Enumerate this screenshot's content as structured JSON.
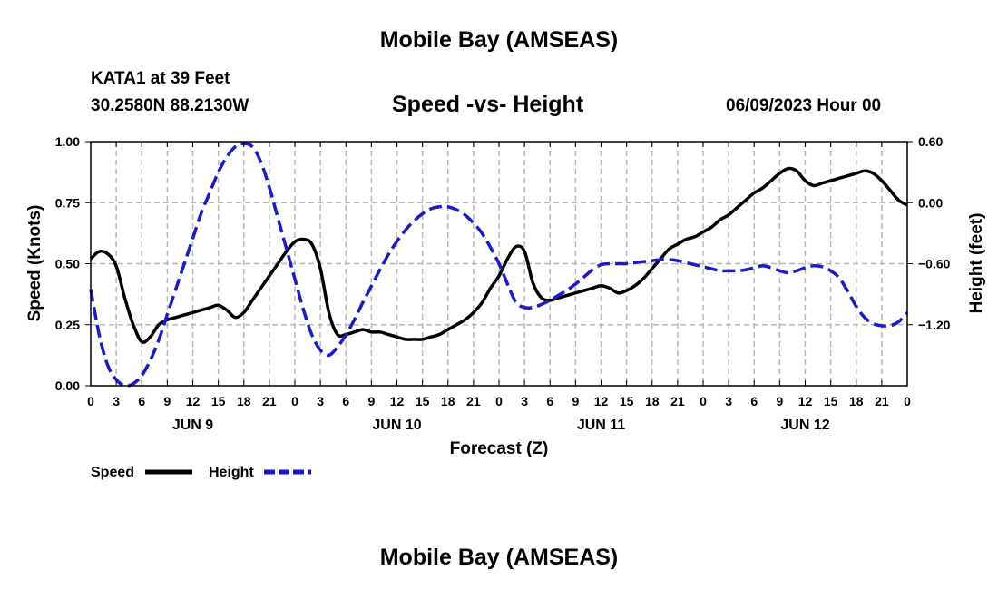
{
  "header": {
    "top_title": "Mobile Bay (AMSEAS)",
    "station": "KATA1 at 39 Feet",
    "coords": "30.2580N  88.2130W",
    "datetime": "06/09/2023 Hour 00",
    "bottom_title": "Mobile Bay (AMSEAS)"
  },
  "chart_data": {
    "type": "line",
    "title": "Speed -vs- Height",
    "xlabel": "Forecast (Z)",
    "ylabel_left": "Speed (Knots)",
    "ylabel_right": "Height (feet)",
    "x_range_hours": [
      0,
      96
    ],
    "x_tick_labels": [
      "0",
      "3",
      "6",
      "9",
      "12",
      "15",
      "18",
      "21",
      "0",
      "3",
      "6",
      "9",
      "12",
      "15",
      "18",
      "21",
      "0",
      "3",
      "6",
      "9",
      "12",
      "15",
      "18",
      "21",
      "0",
      "3",
      "6",
      "9",
      "12",
      "15",
      "18",
      "21",
      "0"
    ],
    "day_labels": [
      {
        "text": "JUN 9",
        "hour": 12
      },
      {
        "text": "JUN 10",
        "hour": 36
      },
      {
        "text": "JUN 11",
        "hour": 60
      },
      {
        "text": "JUN 12",
        "hour": 84
      }
    ],
    "ylim_left": [
      0,
      1.0
    ],
    "yticks_left": [
      {
        "value": 0.0,
        "label": "0.00"
      },
      {
        "value": 0.25,
        "label": "0.25"
      },
      {
        "value": 0.5,
        "label": "0.50"
      },
      {
        "value": 0.75,
        "label": "0.75"
      },
      {
        "value": 1.0,
        "label": "1.00"
      }
    ],
    "ylim_right": [
      -1.8,
      0.6
    ],
    "yticks_right": [
      {
        "value": 0.6,
        "label": "0.60"
      },
      {
        "value": 0.0,
        "label": "0.00"
      },
      {
        "value": -0.6,
        "label": "−0.60"
      },
      {
        "value": -1.2,
        "label": "−1.20"
      }
    ],
    "grid": true,
    "series": [
      {
        "name": "Speed",
        "axis": "left",
        "color": "#000000",
        "style": "solid",
        "x": [
          0,
          1,
          2,
          3,
          4,
          5,
          6,
          7,
          8,
          9,
          10,
          11,
          12,
          13,
          14,
          15,
          16,
          17,
          18,
          19,
          20,
          21,
          22,
          23,
          24,
          25,
          26,
          27,
          28,
          29,
          30,
          31,
          32,
          33,
          34,
          35,
          36,
          37,
          38,
          39,
          40,
          41,
          42,
          43,
          44,
          45,
          46,
          47,
          48,
          49,
          50,
          51,
          52,
          53,
          54,
          55,
          56,
          57,
          58,
          59,
          60,
          61,
          62,
          63,
          64,
          65,
          66,
          67,
          68,
          69,
          70,
          71,
          72,
          73,
          74,
          75,
          76,
          77,
          78,
          79,
          80,
          81,
          82,
          83,
          84,
          85,
          86,
          87,
          88,
          89,
          90,
          91,
          92,
          93,
          94,
          95,
          96
        ],
        "values": [
          0.52,
          0.55,
          0.54,
          0.49,
          0.36,
          0.25,
          0.18,
          0.2,
          0.25,
          0.27,
          0.28,
          0.29,
          0.3,
          0.31,
          0.32,
          0.33,
          0.31,
          0.28,
          0.3,
          0.35,
          0.4,
          0.45,
          0.5,
          0.55,
          0.59,
          0.6,
          0.58,
          0.48,
          0.3,
          0.21,
          0.21,
          0.22,
          0.23,
          0.22,
          0.22,
          0.21,
          0.2,
          0.19,
          0.19,
          0.19,
          0.2,
          0.21,
          0.23,
          0.25,
          0.27,
          0.3,
          0.34,
          0.4,
          0.45,
          0.52,
          0.57,
          0.55,
          0.42,
          0.36,
          0.35,
          0.36,
          0.37,
          0.38,
          0.39,
          0.4,
          0.41,
          0.4,
          0.38,
          0.39,
          0.41,
          0.44,
          0.48,
          0.52,
          0.56,
          0.58,
          0.6,
          0.61,
          0.63,
          0.65,
          0.68,
          0.7,
          0.73,
          0.76,
          0.79,
          0.81,
          0.84,
          0.87,
          0.89,
          0.88,
          0.84,
          0.82,
          0.83,
          0.84,
          0.85,
          0.86,
          0.87,
          0.88,
          0.87,
          0.84,
          0.8,
          0.76,
          0.74
        ]
      },
      {
        "name": "Height",
        "axis": "right",
        "color": "#1a1acd",
        "style": "dashed",
        "x": [
          0,
          1,
          2,
          3,
          4,
          5,
          6,
          7,
          8,
          9,
          10,
          11,
          12,
          13,
          14,
          15,
          16,
          17,
          18,
          19,
          20,
          21,
          22,
          23,
          24,
          25,
          26,
          27,
          28,
          29,
          30,
          31,
          32,
          33,
          34,
          35,
          36,
          37,
          38,
          39,
          40,
          41,
          42,
          43,
          44,
          45,
          46,
          47,
          48,
          49,
          50,
          51,
          52,
          53,
          54,
          55,
          56,
          57,
          58,
          59,
          60,
          61,
          62,
          63,
          64,
          65,
          66,
          67,
          68,
          69,
          70,
          71,
          72,
          73,
          74,
          75,
          76,
          77,
          78,
          79,
          80,
          81,
          82,
          83,
          84,
          85,
          86,
          87,
          88,
          89,
          90,
          91,
          92,
          93,
          94,
          95,
          96
        ],
        "values": [
          -0.85,
          -1.3,
          -1.6,
          -1.74,
          -1.8,
          -1.78,
          -1.7,
          -1.55,
          -1.35,
          -1.1,
          -0.85,
          -0.6,
          -0.35,
          -0.1,
          0.1,
          0.3,
          0.45,
          0.55,
          0.58,
          0.55,
          0.4,
          0.15,
          -0.15,
          -0.45,
          -0.75,
          -1.05,
          -1.3,
          -1.45,
          -1.5,
          -1.42,
          -1.3,
          -1.15,
          -0.98,
          -0.82,
          -0.66,
          -0.51,
          -0.38,
          -0.27,
          -0.18,
          -0.11,
          -0.06,
          -0.04,
          -0.04,
          -0.07,
          -0.12,
          -0.2,
          -0.3,
          -0.44,
          -0.6,
          -0.8,
          -0.98,
          -1.03,
          -1.03,
          -1.0,
          -0.96,
          -0.91,
          -0.86,
          -0.8,
          -0.73,
          -0.66,
          -0.61,
          -0.6,
          -0.6,
          -0.6,
          -0.59,
          -0.58,
          -0.57,
          -0.56,
          -0.56,
          -0.57,
          -0.59,
          -0.61,
          -0.63,
          -0.65,
          -0.67,
          -0.67,
          -0.67,
          -0.66,
          -0.64,
          -0.62,
          -0.64,
          -0.67,
          -0.69,
          -0.67,
          -0.64,
          -0.62,
          -0.63,
          -0.67,
          -0.74,
          -0.87,
          -1.02,
          -1.13,
          -1.19,
          -1.21,
          -1.21,
          -1.17,
          -1.08
        ]
      }
    ]
  }
}
